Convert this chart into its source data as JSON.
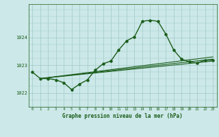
{
  "title": "Graphe pression niveau de la mer (hPa)",
  "xlabel_values": [
    0,
    1,
    2,
    3,
    4,
    5,
    6,
    7,
    8,
    9,
    10,
    11,
    12,
    13,
    14,
    15,
    16,
    17,
    18,
    19,
    20,
    21,
    22,
    23
  ],
  "xlim": [
    -0.5,
    23.5
  ],
  "ylim": [
    1021.5,
    1025.2
  ],
  "yticks": [
    1022,
    1023,
    1024
  ],
  "background_color": "#cce8e8",
  "grid_color": "#a0c8c8",
  "line_color": "#1a5c1a",
  "main_series": {
    "x": [
      0,
      1,
      2,
      3,
      4,
      5,
      6,
      7,
      8,
      9,
      10,
      11,
      12,
      13,
      14,
      15,
      16,
      17,
      18,
      19,
      20,
      21,
      22,
      23
    ],
    "y": [
      1022.75,
      1022.52,
      1022.52,
      1022.47,
      1022.37,
      1022.12,
      1022.32,
      1022.47,
      1022.82,
      1023.05,
      1023.15,
      1023.55,
      1023.88,
      1024.02,
      1024.58,
      1024.62,
      1024.58,
      1024.12,
      1023.55,
      1023.22,
      1023.12,
      1023.08,
      1023.18,
      1023.18
    ]
  },
  "reg1": {
    "x": [
      1,
      23
    ],
    "y": [
      1022.52,
      1023.3
    ]
  },
  "reg2": {
    "x": [
      1,
      23
    ],
    "y": [
      1022.52,
      1023.22
    ]
  },
  "reg3": {
    "x": [
      1,
      23
    ],
    "y": [
      1022.52,
      1023.15
    ]
  }
}
